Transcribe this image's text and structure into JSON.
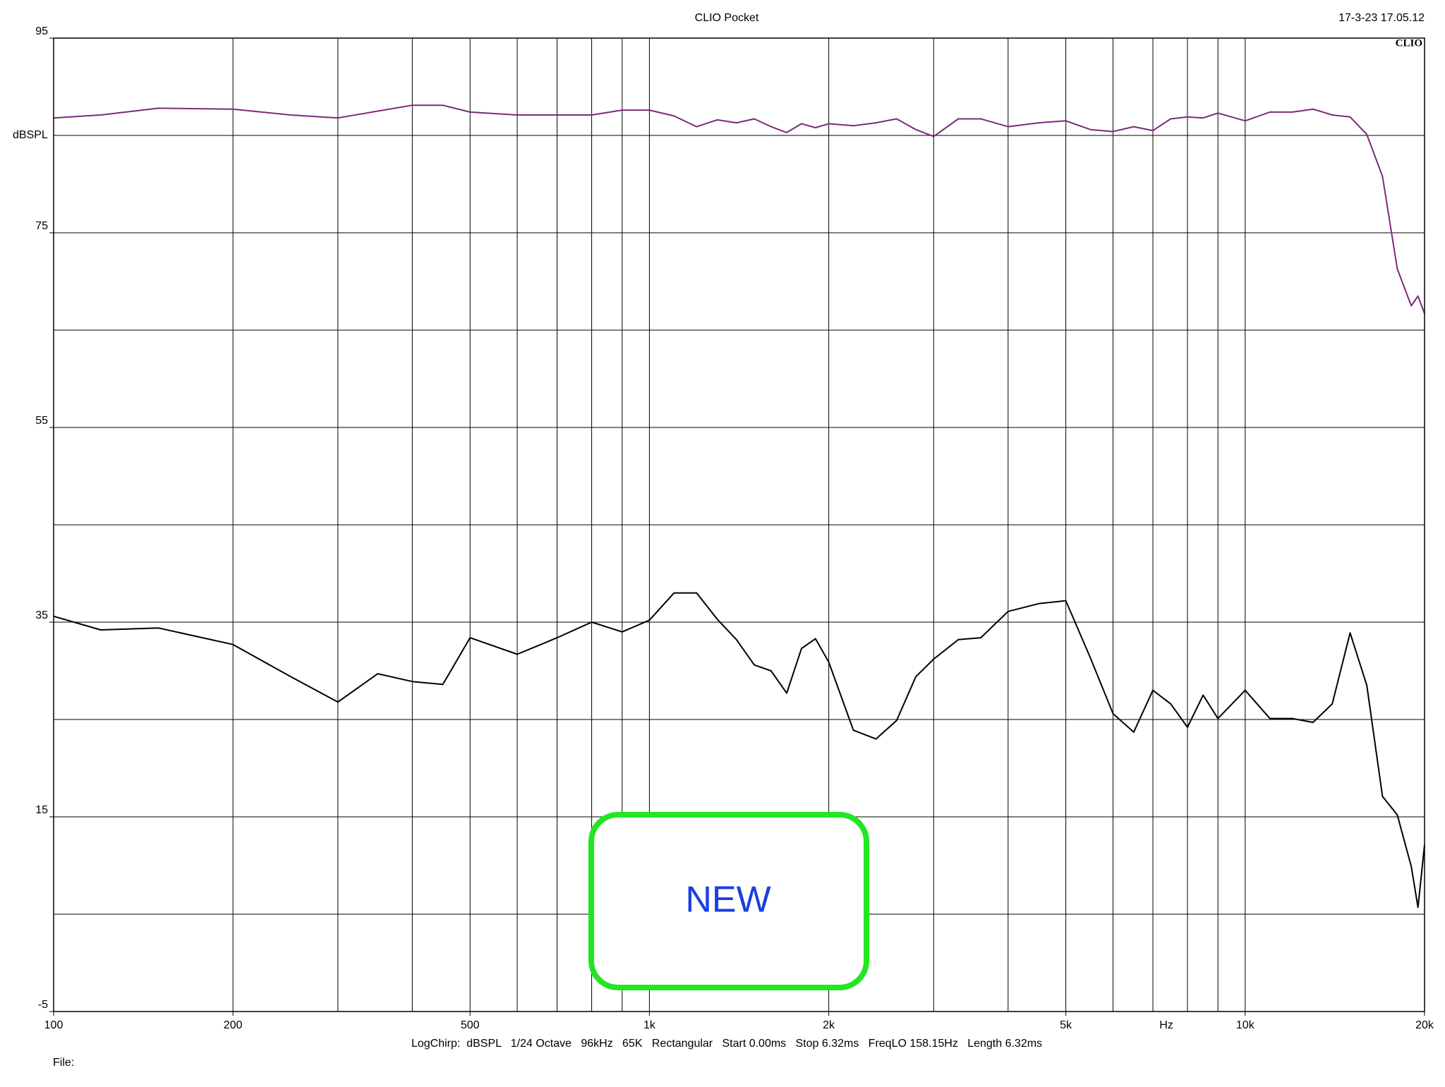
{
  "chart_data": {
    "type": "line",
    "title": "CLIO Pocket",
    "timestamp": "17-3-23 17.05.12",
    "logo": "CLIO",
    "ylabel": "dBSPL",
    "xlabel": "Hz",
    "footer": "LogChirp:  dBSPL   1/24 Octave   96kHz   65K   Rectangular   Start 0.00ms   Stop 6.32ms   FreqLO 158.15Hz   Length 6.32ms",
    "file_label": "File:",
    "button": "NEW",
    "log_x": true,
    "grid": true,
    "xlim": [
      100,
      20000
    ],
    "ylim": [
      -5,
      95
    ],
    "xticks": [
      100,
      200,
      500,
      {
        "value": 1000,
        "label": "1k"
      },
      {
        "value": 2000,
        "label": "2k"
      },
      {
        "value": 5000,
        "label": "5k"
      },
      {
        "value": 10000,
        "label": "10k"
      },
      {
        "value": 20000,
        "label": "20k"
      }
    ],
    "xgrid": [
      100,
      200,
      300,
      400,
      500,
      600,
      700,
      800,
      900,
      1000,
      2000,
      3000,
      4000,
      5000,
      6000,
      7000,
      8000,
      9000,
      10000,
      20000
    ],
    "yticks": [
      95,
      75,
      55,
      35,
      15,
      -5
    ],
    "ygrid": [
      -5,
      5,
      15,
      25,
      35,
      45,
      55,
      65,
      75,
      85,
      95
    ],
    "x": [
      100,
      120,
      150,
      200,
      250,
      300,
      350,
      400,
      450,
      500,
      600,
      700,
      800,
      900,
      1000,
      1100,
      1200,
      1300,
      1400,
      1500,
      1600,
      1700,
      1800,
      1900,
      2000,
      2200,
      2400,
      2600,
      2800,
      3000,
      3300,
      3600,
      4000,
      4500,
      5000,
      5500,
      6000,
      6500,
      7000,
      7500,
      8000,
      8500,
      9000,
      10000,
      11000,
      12000,
      13000,
      14000,
      15000,
      16000,
      17000,
      18000,
      19000,
      19500,
      20000
    ],
    "series": [
      {
        "color": "#7b2a7b",
        "values": [
          86.8,
          87.1,
          87.8,
          87.7,
          87.1,
          86.8,
          87.5,
          88.1,
          88.1,
          87.4,
          87.1,
          87.1,
          87.1,
          87.6,
          87.6,
          87.0,
          85.9,
          86.6,
          86.3,
          86.7,
          85.9,
          85.3,
          86.2,
          85.8,
          86.2,
          86.0,
          86.3,
          86.7,
          85.6,
          84.9,
          86.7,
          86.7,
          85.9,
          86.3,
          86.5,
          85.6,
          85.4,
          85.9,
          85.5,
          86.7,
          86.9,
          86.8,
          87.3,
          86.5,
          87.4,
          87.4,
          87.7,
          87.1,
          86.9,
          85.1,
          80.8,
          71.3,
          67.5,
          68.5,
          66.7
        ]
      },
      {
        "color": "#000000",
        "values": [
          35.6,
          34.2,
          34.4,
          32.7,
          29.4,
          26.8,
          29.7,
          28.9,
          28.6,
          33.4,
          31.7,
          33.4,
          35.0,
          34.0,
          35.2,
          38.0,
          38.0,
          35.3,
          33.2,
          30.6,
          30.0,
          27.7,
          32.3,
          33.3,
          30.9,
          23.9,
          23.0,
          24.9,
          29.4,
          31.2,
          33.2,
          33.4,
          36.1,
          36.9,
          37.2,
          31.3,
          25.6,
          23.7,
          28.0,
          26.6,
          24.2,
          27.5,
          25.1,
          28.0,
          25.1,
          25.1,
          24.7,
          26.6,
          33.9,
          28.5,
          17.1,
          15.2,
          9.9,
          5.7,
          12.1
        ]
      }
    ]
  }
}
